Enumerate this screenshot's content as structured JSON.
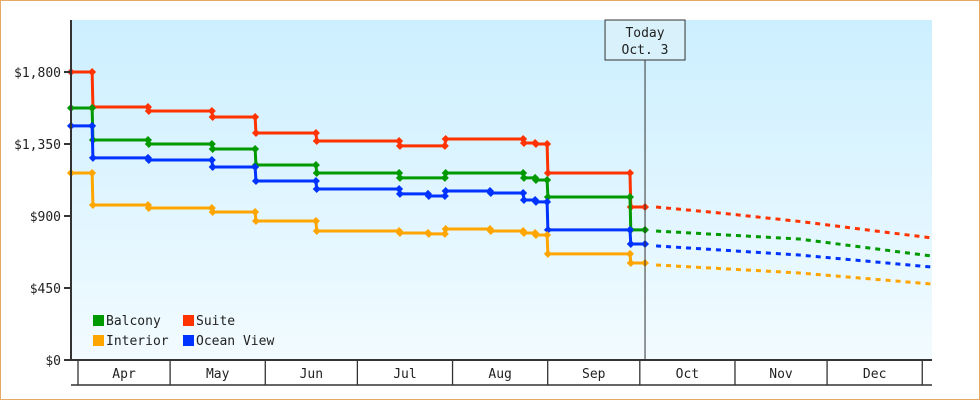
{
  "chart_data": {
    "type": "line",
    "title": "",
    "xlabel": "",
    "ylabel": "",
    "x_units": "days since Apr 1",
    "xlim": [
      -2.3,
      278
    ],
    "ylim": [
      0,
      2125
    ],
    "y_ticks": [
      {
        "value": 0,
        "label": "$0"
      },
      {
        "value": 450,
        "label": "$450"
      },
      {
        "value": 900,
        "label": "$900"
      },
      {
        "value": 1350,
        "label": "$1,350"
      },
      {
        "value": 1800,
        "label": "$1,800"
      }
    ],
    "months": [
      {
        "label": "Apr",
        "start": 0,
        "end": 30
      },
      {
        "label": "May",
        "start": 30,
        "end": 61
      },
      {
        "label": "Jun",
        "start": 61,
        "end": 91
      },
      {
        "label": "Jul",
        "start": 91,
        "end": 122
      },
      {
        "label": "Aug",
        "start": 122,
        "end": 153
      },
      {
        "label": "Sep",
        "start": 153,
        "end": 183
      },
      {
        "label": "Oct",
        "start": 183,
        "end": 214
      },
      {
        "label": "Nov",
        "start": 214,
        "end": 244
      },
      {
        "label": "Dec",
        "start": 244,
        "end": 275
      }
    ],
    "today": {
      "day": 184.7,
      "label_line1": "Today",
      "label_line2": "Oct. 3"
    },
    "legend_position": "bottom-left",
    "series": [
      {
        "name": "Suite",
        "color": "#ff3300",
        "steps": [
          [
            -2.3,
            1800
          ],
          [
            4.6,
            1581
          ],
          [
            22.8,
            1556
          ],
          [
            43.6,
            1519
          ],
          [
            57.7,
            1419
          ],
          [
            77.5,
            1369
          ],
          [
            104.6,
            1338
          ],
          [
            119.5,
            1381
          ],
          [
            145,
            1356
          ],
          [
            148.9,
            1350
          ],
          [
            152.8,
            1169
          ],
          [
            179.8,
            956
          ],
          [
            184.7,
            956
          ]
        ],
        "projection": [
          [
            188.3,
            956
          ],
          [
            209,
            919
          ],
          [
            235,
            866
          ],
          [
            278,
            763
          ]
        ]
      },
      {
        "name": "Balcony",
        "color": "#009900",
        "steps": [
          [
            -2.3,
            1575
          ],
          [
            4.6,
            1375
          ],
          [
            22.8,
            1350
          ],
          [
            43.6,
            1319
          ],
          [
            57.7,
            1219
          ],
          [
            77.5,
            1169
          ],
          [
            104.6,
            1138
          ],
          [
            119.5,
            1169
          ],
          [
            145,
            1138
          ],
          [
            148.9,
            1125
          ],
          [
            152.8,
            1019
          ],
          [
            179.8,
            813
          ],
          [
            184.7,
            813
          ]
        ],
        "projection": [
          [
            188.3,
            806
          ],
          [
            235,
            756
          ],
          [
            278,
            650
          ]
        ]
      },
      {
        "name": "Ocean View",
        "color": "#0033ff",
        "steps": [
          [
            -2.3,
            1463
          ],
          [
            4.6,
            1263
          ],
          [
            22.8,
            1250
          ],
          [
            43.6,
            1206
          ],
          [
            57.7,
            1119
          ],
          [
            77.5,
            1069
          ],
          [
            104.6,
            1038
          ],
          [
            114,
            1025
          ],
          [
            119.5,
            1056
          ],
          [
            134.2,
            1044
          ],
          [
            145,
            1000
          ],
          [
            148.9,
            988
          ],
          [
            152.8,
            813
          ],
          [
            179.8,
            725
          ],
          [
            184.7,
            725
          ]
        ],
        "projection": [
          [
            188.3,
            713
          ],
          [
            235,
            656
          ],
          [
            278,
            581
          ]
        ]
      },
      {
        "name": "Interior",
        "color": "#ffa500",
        "steps": [
          [
            -2.3,
            1169
          ],
          [
            4.6,
            969
          ],
          [
            22.8,
            950
          ],
          [
            43.6,
            925
          ],
          [
            57.7,
            869
          ],
          [
            77.5,
            806
          ],
          [
            104.6,
            794
          ],
          [
            114,
            788
          ],
          [
            119.5,
            819
          ],
          [
            134.2,
            806
          ],
          [
            145,
            794
          ],
          [
            148.9,
            781
          ],
          [
            152.8,
            663
          ],
          [
            179.8,
            606
          ],
          [
            184.7,
            606
          ]
        ],
        "projection": [
          [
            188.3,
            594
          ],
          [
            235,
            544
          ],
          [
            278,
            475
          ]
        ]
      }
    ],
    "legend": [
      {
        "name": "Balcony",
        "color": "#009900"
      },
      {
        "name": "Suite",
        "color": "#ff3300"
      },
      {
        "name": "Interior",
        "color": "#ffa500"
      },
      {
        "name": "Ocean View",
        "color": "#0033ff"
      }
    ]
  }
}
